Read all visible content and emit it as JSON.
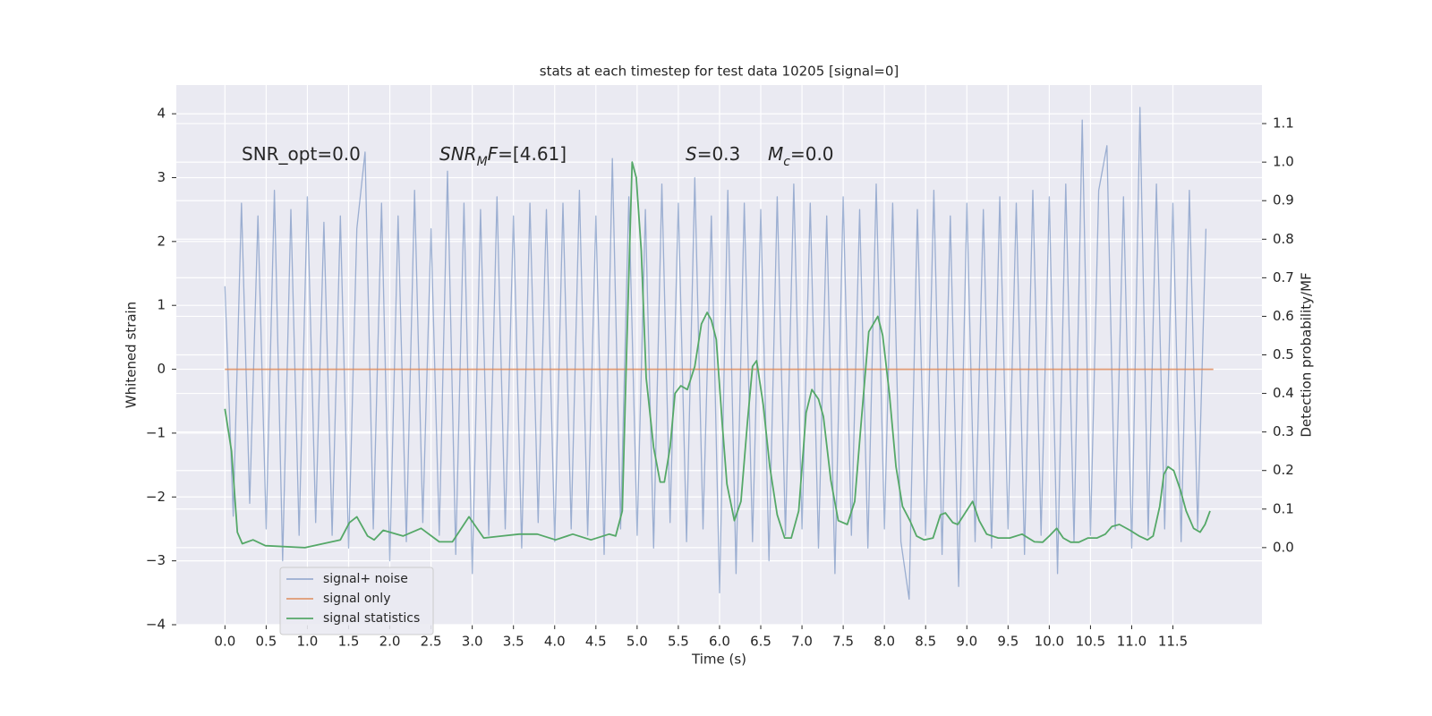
{
  "chart_data": {
    "type": "line",
    "title": "stats at each timestep for test data 10205 [signal=0]",
    "xlabel": "Time (s)",
    "ylabel": "Whitened strain",
    "y2label": "Detection probability/MF",
    "background": "#eaeaf2",
    "grid": true,
    "legend": "lower left",
    "annotations": [
      [
        {
          "text": "SNR_opt=0.0"
        }
      ],
      [
        {
          "text": "SNR",
          "style": "italic"
        },
        {
          "text": "M",
          "style": "sub"
        },
        {
          "text": "F",
          "style": "italic"
        },
        {
          "text": "=[4.61]"
        }
      ],
      [
        {
          "text": "S",
          "style": "italic"
        },
        {
          "text": "=0.3"
        }
      ],
      [
        {
          "text": "M",
          "style": "italic"
        },
        {
          "text": "c",
          "style": "sub"
        },
        {
          "text": "=0.0"
        }
      ]
    ],
    "xlim": [
      -0.59,
      12.58
    ],
    "xticks": [
      {
        "value": 0,
        "label": "0.0"
      },
      0.5,
      {
        "value": 1,
        "label": "1.0"
      },
      1.5,
      {
        "value": 2,
        "label": "2.0"
      },
      2.5,
      {
        "value": 3,
        "label": "3.0"
      },
      3.5,
      {
        "value": 4,
        "label": "4.0"
      },
      4.5,
      {
        "value": 5,
        "label": "5.0"
      },
      5.5,
      {
        "value": 6,
        "label": "6.0"
      },
      6.5,
      {
        "value": 7,
        "label": "7.0"
      },
      7.5,
      {
        "value": 8,
        "label": "8.0"
      },
      8.5,
      {
        "value": 9,
        "label": "9.0"
      },
      9.5,
      {
        "value": 10,
        "label": "10.0"
      },
      10.5,
      {
        "value": 11,
        "label": "11.0"
      },
      11.5
    ],
    "ylim": [
      -4,
      4.45
    ],
    "yticks": [
      {
        "value": -4,
        "label": "−4"
      },
      {
        "value": -3,
        "label": "−3"
      },
      {
        "value": -2,
        "label": "−2"
      },
      {
        "value": -1,
        "label": "−1"
      },
      0,
      1,
      2,
      3,
      4
    ],
    "y2lim": [
      -0.2,
      1.2
    ],
    "y2ticks": [
      {
        "value": 0,
        "label": "0.0"
      },
      0.1,
      0.2,
      0.3,
      0.4,
      0.5,
      0.6,
      0.7,
      0.8,
      0.9,
      {
        "value": 1,
        "label": "1.0"
      },
      1.1
    ],
    "series": [
      {
        "name": "signal+ noise",
        "color": "#4c72b0",
        "opacity": 0.5,
        "x": [
          0.0,
          0.1,
          0.2,
          0.3,
          0.4,
          0.5,
          0.6,
          0.7,
          0.8,
          0.9,
          1.0,
          1.1,
          1.2,
          1.3,
          1.4,
          1.5,
          1.6,
          1.7,
          1.8,
          1.9,
          2.0,
          2.1,
          2.2,
          2.3,
          2.4,
          2.5,
          2.6,
          2.7,
          2.8,
          2.9,
          3.0,
          3.1,
          3.2,
          3.3,
          3.4,
          3.5,
          3.6,
          3.7,
          3.8,
          3.9,
          4.0,
          4.1,
          4.2,
          4.3,
          4.4,
          4.5,
          4.6,
          4.7,
          4.8,
          4.9,
          5.0,
          5.1,
          5.2,
          5.3,
          5.4,
          5.5,
          5.6,
          5.7,
          5.8,
          5.9,
          6.0,
          6.1,
          6.2,
          6.3,
          6.4,
          6.5,
          6.6,
          6.7,
          6.8,
          6.9,
          7.0,
          7.1,
          7.2,
          7.3,
          7.4,
          7.5,
          7.6,
          7.7,
          7.8,
          7.9,
          8.0,
          8.1,
          8.2,
          8.3,
          8.4,
          8.5,
          8.6,
          8.7,
          8.8,
          8.9,
          9.0,
          9.1,
          9.2,
          9.3,
          9.4,
          9.5,
          9.6,
          9.7,
          9.8,
          9.9,
          10.0,
          10.1,
          10.2,
          10.3,
          10.4,
          10.5,
          10.6,
          10.7,
          10.8,
          10.9,
          11.0,
          11.1,
          11.2,
          11.3,
          11.4,
          11.5,
          11.6,
          11.7,
          11.8,
          11.9
        ],
        "values": [
          1.3,
          -2.3,
          2.6,
          -2.1,
          2.4,
          -2.5,
          2.8,
          -3.0,
          2.5,
          -2.6,
          2.7,
          -2.4,
          2.3,
          -2.6,
          2.4,
          -2.8,
          2.2,
          3.4,
          -2.5,
          2.6,
          -3.0,
          2.4,
          -2.7,
          2.8,
          -2.4,
          2.2,
          -2.6,
          3.1,
          -2.9,
          2.6,
          -3.2,
          2.5,
          -2.6,
          2.7,
          -2.5,
          2.4,
          -2.8,
          2.6,
          -2.4,
          2.5,
          -2.7,
          2.6,
          -2.5,
          2.8,
          -2.6,
          2.4,
          -2.9,
          3.3,
          -2.5,
          2.7,
          -2.6,
          2.5,
          -2.8,
          2.9,
          -2.4,
          2.6,
          -2.7,
          3.0,
          -2.5,
          2.4,
          -3.5,
          2.8,
          -3.2,
          2.6,
          -2.7,
          2.5,
          -3.0,
          2.7,
          -2.6,
          2.9,
          -2.5,
          2.6,
          -2.8,
          2.4,
          -3.2,
          2.7,
          -2.6,
          2.5,
          -2.8,
          2.9,
          -2.5,
          2.6,
          -2.7,
          -3.6,
          2.5,
          -2.6,
          2.8,
          -2.9,
          2.4,
          -3.4,
          2.6,
          -2.7,
          2.5,
          -2.8,
          2.7,
          -2.5,
          2.6,
          -2.9,
          2.8,
          -2.6,
          2.7,
          -3.2,
          2.9,
          -2.7,
          3.9,
          -2.6,
          2.8,
          3.5,
          -2.5,
          2.7,
          -2.8,
          4.1,
          -2.6,
          2.9,
          -2.5,
          2.6,
          -2.7,
          2.8,
          -2.5,
          2.2
        ]
      },
      {
        "name": "signal only",
        "color": "#dd8452",
        "opacity": 0.8,
        "x": [
          0.0,
          11.99
        ],
        "values": [
          0,
          0
        ]
      },
      {
        "name": "signal statistics",
        "color": "#55a868",
        "opacity": 1,
        "axis": "y2",
        "x": [
          0,
          0.08,
          0.15,
          0.21,
          0.34,
          0.49,
          0.97,
          1.4,
          1.51,
          1.6,
          1.73,
          1.81,
          1.92,
          2.16,
          2.38,
          2.6,
          2.76,
          2.96,
          3.14,
          3.36,
          3.57,
          3.79,
          4.01,
          4.22,
          4.44,
          4.66,
          4.74,
          4.82,
          4.87,
          4.94,
          4.99,
          5.05,
          5.11,
          5.2,
          5.28,
          5.33,
          5.4,
          5.46,
          5.53,
          5.61,
          5.7,
          5.78,
          5.85,
          5.9,
          5.96,
          6.03,
          6.09,
          6.18,
          6.26,
          6.34,
          6.4,
          6.45,
          6.53,
          6.61,
          6.7,
          6.79,
          6.87,
          6.96,
          7.05,
          7.12,
          7.2,
          7.26,
          7.35,
          7.44,
          7.55,
          7.64,
          7.72,
          7.81,
          7.92,
          7.98,
          8.06,
          8.14,
          8.22,
          8.31,
          8.39,
          8.48,
          8.59,
          8.68,
          8.74,
          8.83,
          8.89,
          8.98,
          9.07,
          9.15,
          9.24,
          9.38,
          9.52,
          9.67,
          9.82,
          9.92,
          10.0,
          10.09,
          10.17,
          10.26,
          10.36,
          10.47,
          10.58,
          10.68,
          10.76,
          10.85,
          10.98,
          11.09,
          11.19,
          11.26,
          11.34,
          11.39,
          11.44,
          11.51,
          11.59,
          11.66,
          11.75,
          11.83,
          11.89,
          11.95
        ],
        "values": [
          0.36,
          0.25,
          0.04,
          0.01,
          0.02,
          0.005,
          0,
          0.02,
          0.065,
          0.08,
          0.03,
          0.02,
          0.045,
          0.03,
          0.05,
          0.015,
          0.015,
          0.08,
          0.025,
          0.03,
          0.035,
          0.035,
          0.02,
          0.035,
          0.02,
          0.035,
          0.03,
          0.095,
          0.49,
          1.0,
          0.96,
          0.77,
          0.44,
          0.26,
          0.17,
          0.17,
          0.26,
          0.4,
          0.42,
          0.41,
          0.47,
          0.58,
          0.61,
          0.59,
          0.54,
          0.33,
          0.165,
          0.07,
          0.12,
          0.33,
          0.47,
          0.485,
          0.37,
          0.21,
          0.085,
          0.025,
          0.025,
          0.095,
          0.35,
          0.41,
          0.385,
          0.34,
          0.175,
          0.07,
          0.06,
          0.12,
          0.33,
          0.56,
          0.6,
          0.55,
          0.4,
          0.21,
          0.107,
          0.07,
          0.03,
          0.02,
          0.025,
          0.085,
          0.09,
          0.065,
          0.06,
          0.09,
          0.12,
          0.07,
          0.035,
          0.025,
          0.025,
          0.035,
          0.015,
          0.014,
          0.03,
          0.05,
          0.025,
          0.014,
          0.014,
          0.025,
          0.025,
          0.035,
          0.055,
          0.06,
          0.045,
          0.03,
          0.02,
          0.03,
          0.107,
          0.19,
          0.21,
          0.2,
          0.15,
          0.095,
          0.05,
          0.04,
          0.06,
          0.095
        ]
      }
    ]
  }
}
